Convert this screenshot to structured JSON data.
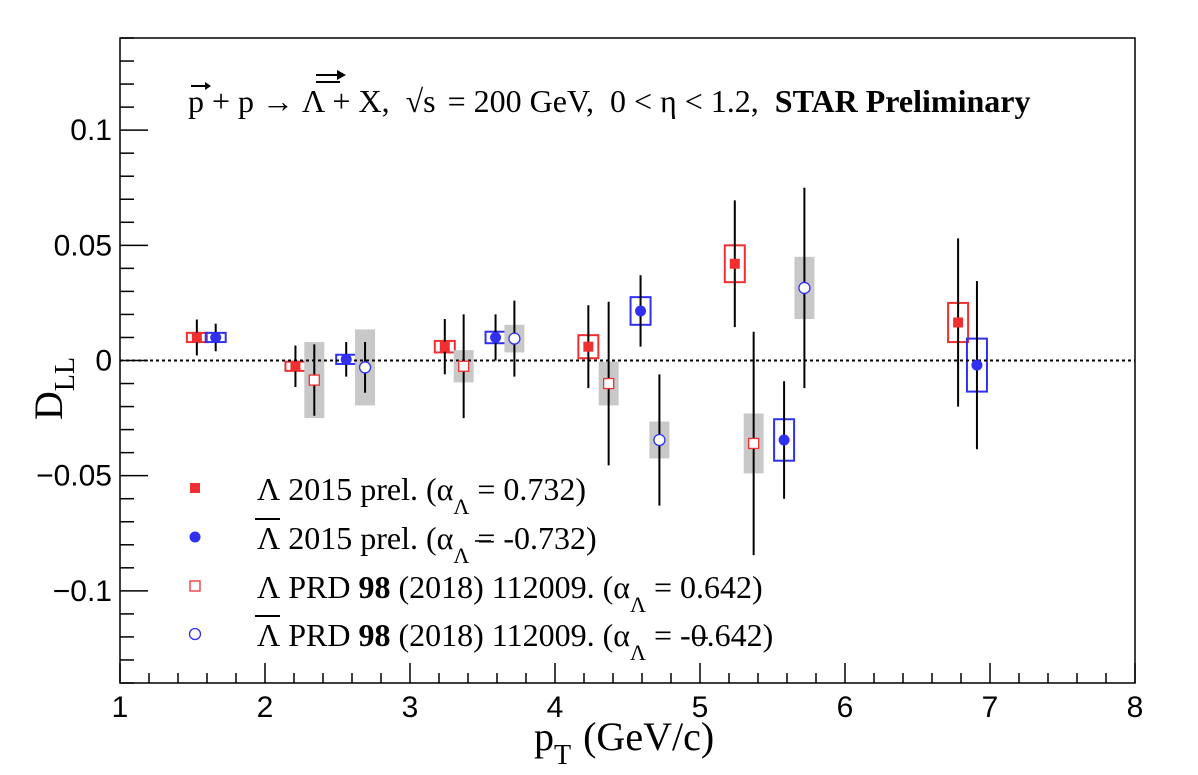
{
  "chart_data": {
    "type": "scatter",
    "title": "STAR Preliminary",
    "annotation": {
      "reaction": "p + p → Λ + X,",
      "sqrt_s_symbol": "√s",
      "energy": "= 200 GeV,",
      "eta_range": "0 < η < 1.2,",
      "experiment": "STAR Preliminary"
    },
    "xlabel": {
      "p": "p",
      "sub": "T",
      "units": "(GeV/c)"
    },
    "ylabel": {
      "d": "D",
      "sub": "LL"
    },
    "xlim": [
      1,
      8
    ],
    "ylim": [
      -0.14,
      0.14
    ],
    "xticks": [
      "1",
      "2",
      "3",
      "4",
      "5",
      "6",
      "7",
      "8"
    ],
    "yticks": [
      "0.1",
      "0.05",
      "0",
      "−0.05",
      "−0.1"
    ],
    "reference_line": 0,
    "series": [
      {
        "name": "Λ 2015 prel. (α_Λ = 0.732)",
        "marker": "filled-square",
        "color": "#f03030",
        "sys_style": "open-box",
        "points": [
          {
            "x": 1.53,
            "y": 0.01,
            "stat": 0.0078,
            "sys": 0.002
          },
          {
            "x": 2.21,
            "y": -0.0025,
            "stat": 0.009,
            "sys": 0.002
          },
          {
            "x": 3.24,
            "y": 0.006,
            "stat": 0.012,
            "sys": 0.0025
          },
          {
            "x": 4.23,
            "y": 0.006,
            "stat": 0.018,
            "sys": 0.005
          },
          {
            "x": 5.24,
            "y": 0.042,
            "stat": 0.0275,
            "sys": 0.008
          },
          {
            "x": 6.78,
            "y": 0.0165,
            "stat": 0.0365,
            "sys": 0.0085
          }
        ]
      },
      {
        "name": "Λ̄ 2015 prel. (α_Λ̄ = -0.732)",
        "marker": "filled-circle",
        "color": "#3030f0",
        "sys_style": "open-box",
        "points": [
          {
            "x": 1.66,
            "y": 0.01,
            "stat": 0.006,
            "sys": 0.002
          },
          {
            "x": 2.56,
            "y": 0.0005,
            "stat": 0.0075,
            "sys": 0.002
          },
          {
            "x": 3.59,
            "y": 0.01,
            "stat": 0.01,
            "sys": 0.0025
          },
          {
            "x": 4.59,
            "y": 0.0215,
            "stat": 0.0155,
            "sys": 0.006
          },
          {
            "x": 5.58,
            "y": -0.0345,
            "stat": 0.0255,
            "sys": 0.009
          },
          {
            "x": 6.91,
            "y": -0.002,
            "stat": 0.0365,
            "sys": 0.0115
          }
        ]
      },
      {
        "name": "Λ PRD 98 (2018) 112009. (α_Λ = 0.642)",
        "marker": "open-square",
        "color": "#f03030",
        "sys_style": "gray-band",
        "points": [
          {
            "x": 2.34,
            "y": -0.0085,
            "stat": 0.0155,
            "sys": 0.0165
          },
          {
            "x": 3.37,
            "y": -0.0025,
            "stat": 0.0225,
            "sys": 0.007
          },
          {
            "x": 4.37,
            "y": -0.01,
            "stat": 0.0355,
            "sys": 0.0095
          },
          {
            "x": 5.37,
            "y": -0.036,
            "stat": 0.0485,
            "sys": 0.013
          }
        ]
      },
      {
        "name": "Λ̄ PRD 98 (2018) 112009. (α_Λ̄ = -0.642)",
        "marker": "open-circle",
        "color": "#3030f0",
        "sys_style": "gray-band",
        "points": [
          {
            "x": 2.69,
            "y": -0.003,
            "stat": 0.011,
            "sys": 0.0165
          },
          {
            "x": 3.72,
            "y": 0.0095,
            "stat": 0.0165,
            "sys": 0.006
          },
          {
            "x": 4.72,
            "y": -0.0345,
            "stat": 0.0285,
            "sys": 0.008
          },
          {
            "x": 5.72,
            "y": 0.0315,
            "stat": 0.0435,
            "sys": 0.0135
          }
        ]
      }
    ],
    "legend": {
      "position": "bottom-left",
      "entries": [
        {
          "sym": "Λ",
          "bar": false,
          "text": "2015 prel. (α",
          "sub": "Λ",
          "sub_bar": false,
          "tail": "= 0.732)"
        },
        {
          "sym": "Λ",
          "bar": true,
          "text": "2015 prel. (α",
          "sub": "Λ",
          "sub_bar": true,
          "tail": "= -0.732)"
        },
        {
          "sym": "Λ",
          "bar": false,
          "text": "PRD",
          "bold": "98",
          "text2": "(2018) 112009. (α",
          "sub": "Λ",
          "sub_bar": false,
          "tail": "= 0.642)"
        },
        {
          "sym": "Λ",
          "bar": true,
          "text": "PRD",
          "bold": "98",
          "text2": "(2018) 112009. (α",
          "sub": "Λ",
          "sub_bar": true,
          "tail": "= -0.642)"
        }
      ]
    }
  }
}
